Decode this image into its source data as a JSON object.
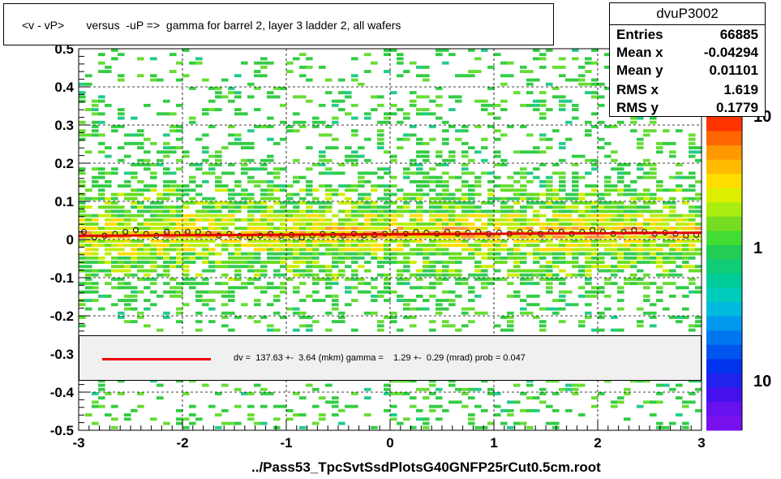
{
  "title": "<v - vP>       versus  -uP =>  gamma for barrel 2, layer 3 ladder 2, all wafers",
  "stats": {
    "name": "dvuP3002",
    "rows": [
      {
        "key": "Entries",
        "value": "66885"
      },
      {
        "key": "Mean x",
        "value": "-0.04294"
      },
      {
        "key": "Mean y",
        "value": "0.01101"
      },
      {
        "key": "RMS x",
        "value": "1.619"
      },
      {
        "key": "RMS y",
        "value": "0.1779"
      }
    ]
  },
  "fit": {
    "text": "dv =  137.63 +-  3.64 (mkm) gamma =    1.29 +-  0.29 (mrad) prob = 0.047",
    "line_color": "#e00000"
  },
  "xtitle": "../Pass53_TpcSvtSsdPlotsG40GNFP25rCut0.5cm.root",
  "chart_data": {
    "type": "heatmap",
    "xlim": [
      -3,
      3
    ],
    "ylim": [
      -0.5,
      0.5
    ],
    "x_ticks": [
      "-3",
      "-2",
      "-1",
      "0",
      "1",
      "2",
      "3"
    ],
    "y_ticks": [
      "-0.5",
      "-0.4",
      "-0.3",
      "-0.2",
      "-0.1",
      "0",
      "0.1",
      "0.2",
      "0.3",
      "0.4",
      "0.5"
    ],
    "grid": true,
    "color_scale": {
      "type": "log",
      "labels": [
        "10",
        "1",
        "10"
      ]
    },
    "fit_line": {
      "x": [
        -3,
        3
      ],
      "y": [
        0.0098,
        0.0175
      ]
    },
    "profile_points": {
      "x": [
        -2.95,
        -2.85,
        -2.75,
        -2.65,
        -2.55,
        -2.45,
        -2.35,
        -2.25,
        -2.15,
        -2.05,
        -1.95,
        -1.85,
        -1.75,
        -1.65,
        -1.55,
        -1.45,
        -1.35,
        -1.25,
        -1.15,
        -1.05,
        -0.95,
        -0.85,
        -0.75,
        -0.65,
        -0.55,
        -0.45,
        -0.35,
        -0.25,
        -0.15,
        -0.05,
        0.05,
        0.15,
        0.25,
        0.35,
        0.45,
        0.55,
        0.65,
        0.75,
        0.85,
        0.95,
        1.05,
        1.15,
        1.25,
        1.35,
        1.45,
        1.55,
        1.65,
        1.75,
        1.85,
        1.95,
        2.05,
        2.15,
        2.25,
        2.35,
        2.45,
        2.55,
        2.65,
        2.75,
        2.85,
        2.95
      ],
      "y": [
        0.02,
        0.005,
        0.01,
        0.015,
        0.02,
        0.025,
        0.015,
        0.01,
        0.02,
        0.015,
        0.02,
        0.02,
        0.015,
        0.01,
        0.015,
        0.01,
        0.005,
        0.01,
        0.015,
        0.01,
        0.012,
        0.005,
        0.01,
        0.015,
        0.012,
        0.01,
        0.015,
        0.01,
        0.012,
        0.015,
        0.02,
        0.015,
        0.02,
        0.018,
        0.015,
        0.02,
        0.015,
        0.018,
        0.02,
        0.015,
        0.018,
        0.015,
        0.02,
        0.018,
        0.015,
        0.02,
        0.02,
        0.015,
        0.02,
        0.025,
        0.02,
        0.015,
        0.02,
        0.025,
        0.02,
        0.015,
        0.018,
        0.015,
        0.01,
        0.012
      ]
    }
  }
}
